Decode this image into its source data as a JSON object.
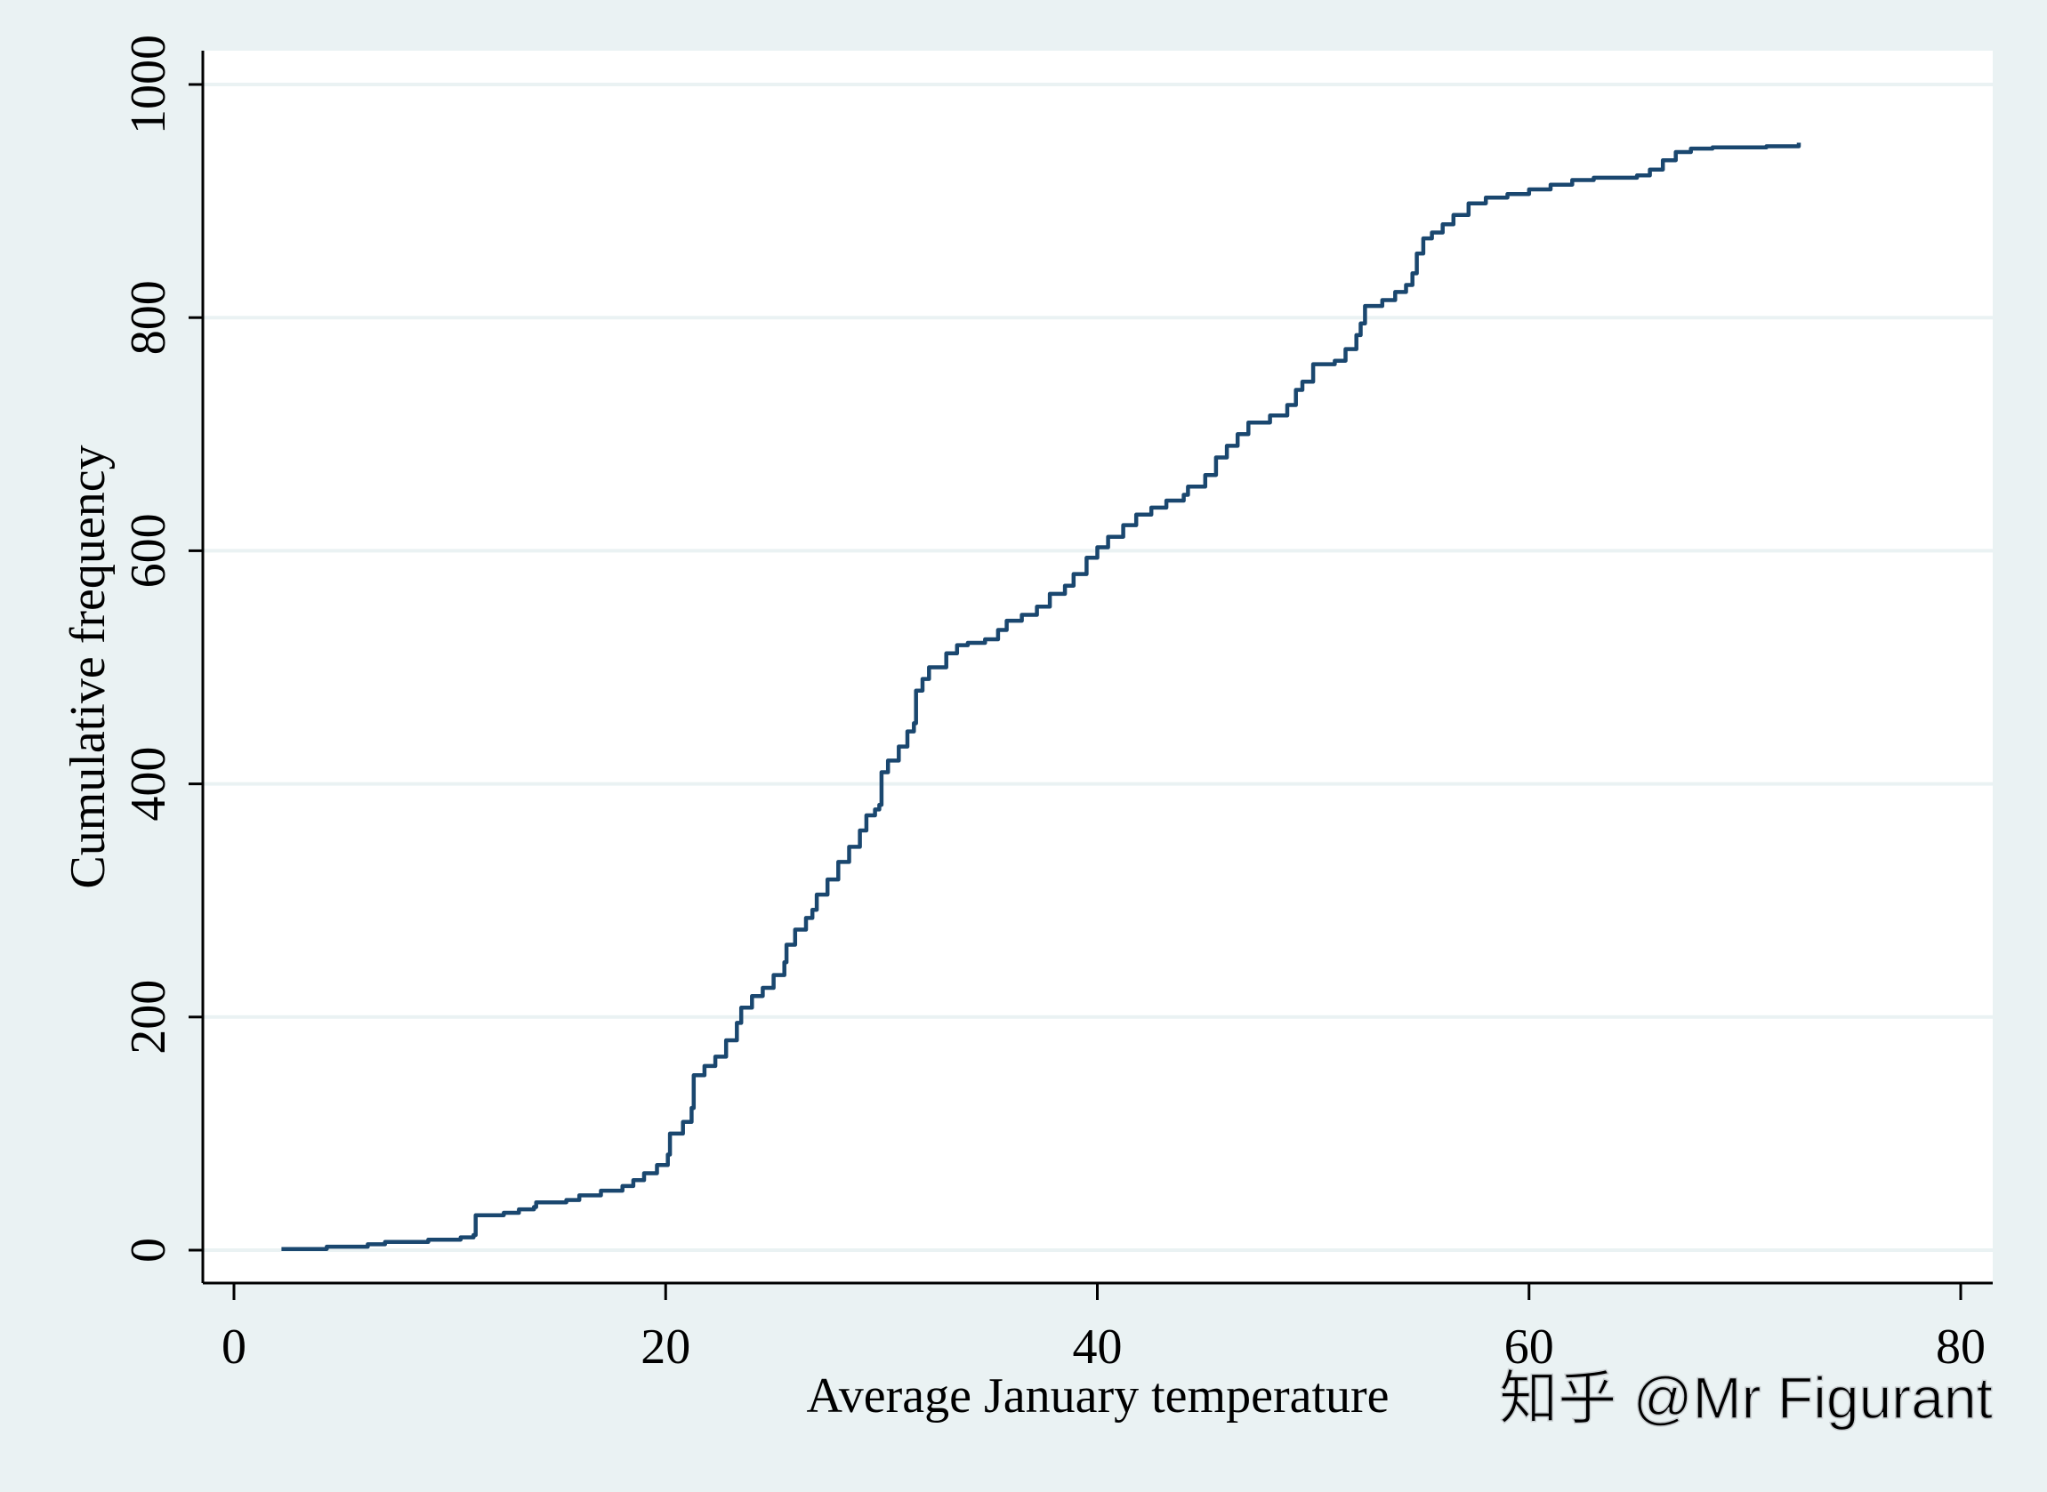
{
  "colors": {
    "background": "#eaf2f3",
    "plot_background": "#ffffff",
    "gridline": "#eaf2f3",
    "axis": "#000000",
    "series": "#1a476f",
    "watermark": "#ffffff"
  },
  "watermark": "知乎 @Mr Figurant",
  "chart_data": {
    "type": "line",
    "title": "",
    "xlabel": "Average January temperature",
    "ylabel": "Cumulative frequency",
    "xlim": [
      0,
      80
    ],
    "ylim": [
      0,
      1000
    ],
    "xticks": [
      0,
      20,
      40,
      60,
      80
    ],
    "yticks": [
      0,
      200,
      400,
      600,
      800,
      1000
    ],
    "xtick_labels": [
      "0",
      "20",
      "40",
      "60",
      "80"
    ],
    "ytick_labels": [
      "0",
      "200",
      "400",
      "600",
      "800",
      "1000"
    ],
    "grid": "horizontal",
    "legend": "none",
    "series": [
      {
        "values": [
          [
            2.2,
            1
          ],
          [
            4.3,
            3
          ],
          [
            6.2,
            5
          ],
          [
            7.0,
            7
          ],
          [
            9.0,
            9
          ],
          [
            10.5,
            11
          ],
          [
            11.1,
            13
          ],
          [
            11.2,
            30
          ],
          [
            12.5,
            32
          ],
          [
            13.2,
            35
          ],
          [
            13.9,
            37
          ],
          [
            14.0,
            41
          ],
          [
            15.4,
            43
          ],
          [
            16.0,
            47
          ],
          [
            17.0,
            51
          ],
          [
            18.0,
            55
          ],
          [
            18.5,
            60
          ],
          [
            19.0,
            66
          ],
          [
            19.6,
            73
          ],
          [
            20.1,
            82
          ],
          [
            20.2,
            100
          ],
          [
            20.8,
            110
          ],
          [
            21.2,
            122
          ],
          [
            21.3,
            150
          ],
          [
            21.8,
            158
          ],
          [
            22.3,
            166
          ],
          [
            22.8,
            180
          ],
          [
            23.3,
            195
          ],
          [
            23.5,
            208
          ],
          [
            24.0,
            218
          ],
          [
            24.5,
            225
          ],
          [
            25.0,
            236
          ],
          [
            25.5,
            247
          ],
          [
            25.6,
            262
          ],
          [
            26.0,
            275
          ],
          [
            26.5,
            285
          ],
          [
            26.8,
            292
          ],
          [
            27.0,
            305
          ],
          [
            27.5,
            318
          ],
          [
            28.0,
            333
          ],
          [
            28.5,
            346
          ],
          [
            29.0,
            360
          ],
          [
            29.3,
            373
          ],
          [
            29.7,
            378
          ],
          [
            29.9,
            382
          ],
          [
            30.0,
            410
          ],
          [
            30.3,
            420
          ],
          [
            30.8,
            432
          ],
          [
            31.2,
            445
          ],
          [
            31.5,
            452
          ],
          [
            31.6,
            480
          ],
          [
            31.9,
            490
          ],
          [
            32.2,
            500
          ],
          [
            33.0,
            512
          ],
          [
            33.5,
            519
          ],
          [
            34.0,
            521
          ],
          [
            34.8,
            524
          ],
          [
            35.4,
            532
          ],
          [
            35.8,
            540
          ],
          [
            36.5,
            545
          ],
          [
            37.2,
            552
          ],
          [
            37.8,
            563
          ],
          [
            38.5,
            570
          ],
          [
            38.9,
            580
          ],
          [
            39.5,
            594
          ],
          [
            40.0,
            603
          ],
          [
            40.5,
            612
          ],
          [
            41.2,
            622
          ],
          [
            41.8,
            631
          ],
          [
            42.5,
            637
          ],
          [
            43.2,
            643
          ],
          [
            44.0,
            648
          ],
          [
            44.2,
            655
          ],
          [
            45.0,
            665
          ],
          [
            45.5,
            680
          ],
          [
            46.0,
            690
          ],
          [
            46.5,
            700
          ],
          [
            47.0,
            710
          ],
          [
            48.0,
            716
          ],
          [
            48.8,
            725
          ],
          [
            49.2,
            738
          ],
          [
            49.5,
            745
          ],
          [
            50.0,
            760
          ],
          [
            51.0,
            763
          ],
          [
            51.5,
            773
          ],
          [
            52.0,
            785
          ],
          [
            52.2,
            795
          ],
          [
            52.4,
            810
          ],
          [
            53.2,
            815
          ],
          [
            53.8,
            822
          ],
          [
            54.3,
            828
          ],
          [
            54.6,
            838
          ],
          [
            54.8,
            855
          ],
          [
            55.1,
            868
          ],
          [
            55.5,
            873
          ],
          [
            56.0,
            880
          ],
          [
            56.5,
            888
          ],
          [
            57.2,
            898
          ],
          [
            58.0,
            903
          ],
          [
            59.0,
            906
          ],
          [
            60.0,
            910
          ],
          [
            61.0,
            914
          ],
          [
            62.0,
            918
          ],
          [
            63.0,
            920
          ],
          [
            65.0,
            922
          ],
          [
            65.6,
            927
          ],
          [
            66.2,
            935
          ],
          [
            66.8,
            942
          ],
          [
            67.5,
            945
          ],
          [
            68.5,
            946
          ],
          [
            70.0,
            946
          ],
          [
            71.0,
            947
          ],
          [
            72.5,
            950
          ]
        ]
      }
    ]
  }
}
